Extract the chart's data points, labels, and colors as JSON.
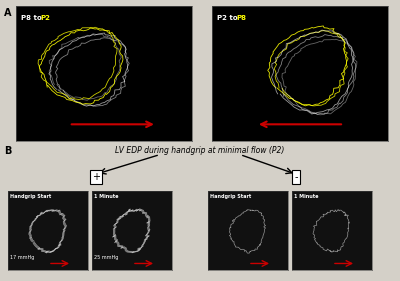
{
  "panel_A_label": "A",
  "panel_B_label": "B",
  "panel_A_left_title": [
    "P8 to ",
    "P2"
  ],
  "panel_A_right_title": [
    "P2 to ",
    "P8"
  ],
  "panel_B_title": "LV EDP during handgrip at minimal flow (P2)",
  "plus_label": "+",
  "minus_label": "-",
  "sub_labels_left": [
    "Handgrip Start",
    "1 Minute"
  ],
  "sub_labels_right": [
    "Handgrip Start",
    "1 Minute"
  ],
  "edp_left_start": "17 mmHg",
  "edp_left_1min": "25 mmHg",
  "bg_color": "#000000",
  "white_color": "#ffffff",
  "yellow_color": "#ffff00",
  "red_color": "#cc0000",
  "panel_bg": "#1a1a1a",
  "outer_bg": "#d4d0c8"
}
